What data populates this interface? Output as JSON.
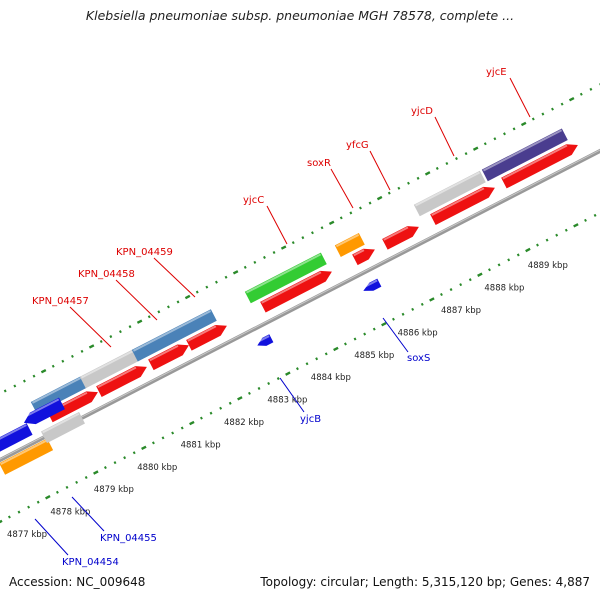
{
  "header": {
    "title": "Klebsiella pneumoniae subsp. pneumoniae MGH 78578, complete ..."
  },
  "footer": {
    "accession": "Accession: NC_009648",
    "summary": "Topology: circular; Length: 5,315,120 bp; Genes: 4,887"
  },
  "colors": {
    "forward_label": "#dd0000",
    "reverse_label": "#0000cc",
    "backbone": "#999999",
    "tick_dots": "#2a8a2a",
    "cds": "#ee1111",
    "gray_gene": "#c8c8c8",
    "steel_gene": "#4a82b8",
    "green_gene": "#33cc33",
    "orange_gene": "#ff9900",
    "blue_gene": "#1111dd",
    "purple_gene": "#4a3d8f"
  },
  "scale": {
    "unit": "kbp",
    "labels": [
      "4877 kbp",
      "4878 kbp",
      "4879 kbp",
      "4880 kbp",
      "4881 kbp",
      "4882 kbp",
      "4883 kbp",
      "4884 kbp",
      "4885 kbp",
      "4886 kbp",
      "4887 kbp",
      "4888 kbp",
      "4889 kbp"
    ]
  },
  "forward_genes": [
    {
      "label": "KPN_04457"
    },
    {
      "label": "KPN_04458"
    },
    {
      "label": "KPN_04459"
    },
    {
      "label": "yjcC"
    },
    {
      "label": "soxR"
    },
    {
      "label": "yfcG"
    },
    {
      "label": "yjcD"
    },
    {
      "label": "yjcE"
    }
  ],
  "reverse_genes": [
    {
      "label": "KPN_04454"
    },
    {
      "label": "KPN_04455"
    },
    {
      "label": "yjcB"
    },
    {
      "label": "soxS"
    }
  ]
}
